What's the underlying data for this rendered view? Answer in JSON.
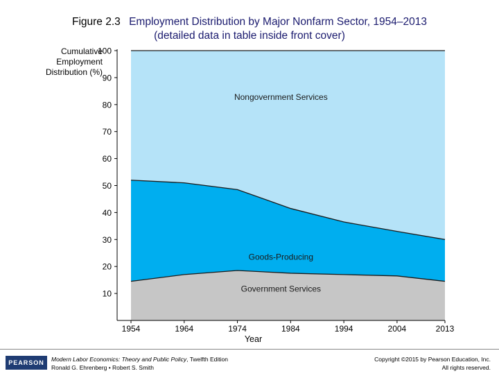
{
  "title": {
    "figure_number": "Figure 2.3",
    "main": "Employment Distribution by Major Nonfarm Sector, 1954–2013",
    "subtitle": "(detailed data in table inside front cover)"
  },
  "chart_data": {
    "type": "area",
    "stacked": true,
    "cumulative": true,
    "ylabel": [
      "Cumulative",
      "Employment",
      "Distribution (%)"
    ],
    "xlabel": "Year",
    "x": [
      1954,
      1964,
      1974,
      1984,
      1994,
      2004,
      2013
    ],
    "x_ticks": [
      "1954",
      "1964",
      "1974",
      "1984",
      "1994",
      "2004",
      "2013"
    ],
    "y_ticks": [
      "10",
      "20",
      "30",
      "40",
      "50",
      "60",
      "70",
      "80",
      "90",
      "100"
    ],
    "ylim": [
      0,
      100
    ],
    "series": [
      {
        "name": "Government Services",
        "color": "#c6c6c6",
        "cumulative_values": [
          14.5,
          17,
          18.5,
          17.5,
          17,
          16.5,
          14.5
        ]
      },
      {
        "name": "Goods-Producing",
        "color": "#00aeef",
        "cumulative_values": [
          52,
          51,
          48.5,
          41.5,
          36.5,
          33,
          30
        ]
      },
      {
        "name": "Nongovernment Services",
        "color": "#b5e3f8",
        "cumulative_values": [
          100,
          100,
          100,
          100,
          100,
          100,
          100
        ]
      }
    ],
    "grid": false
  },
  "footer": {
    "publisher_logo": "PEARSON",
    "book_title": "Modern Labor Economics: Theory and Public Policy",
    "edition": ", Twelfth Edition",
    "authors": "Ronald G. Ehrenberg • Robert S. Smith",
    "copyright": "Copyright ©2015 by Pearson Education, Inc.",
    "rights": "All rights reserved."
  }
}
